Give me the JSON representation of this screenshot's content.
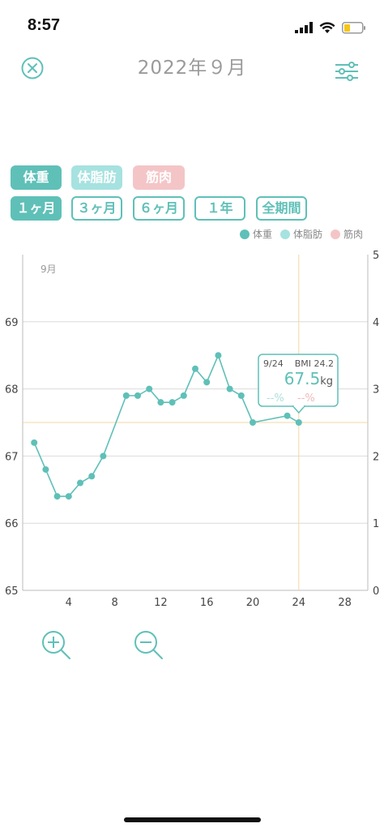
{
  "status_bar": {
    "time": "8:57"
  },
  "header": {
    "title": "2022年９月"
  },
  "metric_tabs": [
    {
      "label": "体重",
      "color": "#5fc0b8"
    },
    {
      "label": "体脂肪",
      "color": "#a6e2e0"
    },
    {
      "label": "筋肉",
      "color": "#f4c5c7"
    }
  ],
  "period_tabs": [
    {
      "label": "１ヶ月",
      "active": true
    },
    {
      "label": "３ヶ月",
      "active": false
    },
    {
      "label": "６ヶ月",
      "active": false
    },
    {
      "label": "１年",
      "active": false
    },
    {
      "label": "全期間",
      "active": false
    }
  ],
  "legend": [
    {
      "label": "体重",
      "color": "#5fc0b8"
    },
    {
      "label": "体脂肪",
      "color": "#a6e2e0"
    },
    {
      "label": "筋肉",
      "color": "#f4c5c7"
    }
  ],
  "chart_data": {
    "type": "line",
    "month_label": "9月",
    "x": [
      1,
      2,
      3,
      4,
      5,
      6,
      7,
      9,
      10,
      11,
      12,
      13,
      14,
      15,
      16,
      17,
      18,
      19,
      20,
      23,
      24
    ],
    "series": [
      {
        "name": "体重",
        "color": "#5fc0b8",
        "values": [
          67.2,
          66.8,
          66.4,
          66.4,
          66.6,
          66.7,
          67.0,
          67.9,
          67.9,
          68.0,
          67.8,
          67.8,
          67.9,
          68.3,
          68.1,
          68.5,
          68.0,
          67.9,
          67.5,
          67.6,
          67.5
        ]
      }
    ],
    "xlim": [
      0,
      30
    ],
    "xticks": [
      "4",
      "8",
      "12",
      "16",
      "20",
      "24",
      "28"
    ],
    "ylim_left": [
      65,
      70
    ],
    "yticks_left": [
      "65",
      "66",
      "67",
      "68",
      "69"
    ],
    "ylim_right": [
      0,
      5
    ],
    "yticks_right": [
      "0",
      "1",
      "2",
      "3",
      "4",
      "5"
    ],
    "crosshair": {
      "x": 24,
      "y": 67.5,
      "color": "#f3d7a3"
    },
    "tooltip": {
      "date": "9/24",
      "bmi": "BMI 24.2",
      "value": "67.5",
      "unit": "kg",
      "fat": "--%",
      "muscle": "--%"
    }
  }
}
